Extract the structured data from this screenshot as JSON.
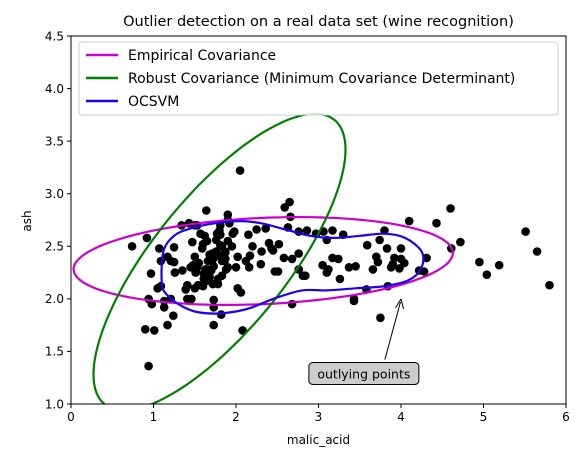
{
  "chart_data": {
    "type": "scatter",
    "title": "Outlier detection on a real data set (wine recognition)",
    "xlabel": "malic_acid",
    "ylabel": "ash",
    "xlim": [
      0,
      6
    ],
    "ylim": [
      1.0,
      4.5
    ],
    "x_ticks": [
      "0",
      "1",
      "2",
      "3",
      "4",
      "5",
      "6"
    ],
    "y_ticks": [
      "1.0",
      "1.5",
      "2.0",
      "2.5",
      "3.0",
      "3.5",
      "4.0",
      "4.5"
    ],
    "grid": false,
    "legend_position": "top",
    "series": [
      {
        "name": "Empirical Covariance",
        "kind": "contour",
        "color": "#cc00cc"
      },
      {
        "name": "Robust Covariance (Minimum Covariance Determinant)",
        "kind": "contour",
        "color": "#008000"
      },
      {
        "name": "OCSVM",
        "kind": "contour",
        "color": "#2200ee"
      }
    ],
    "contours": {
      "empirical": {
        "center": [
          2.33,
          2.36
        ],
        "semi_axes": [
          2.3,
          0.41
        ],
        "angle_deg": 2
      },
      "robust": {
        "center": [
          1.8,
          2.35
        ],
        "semi_axes": [
          1.95,
          0.72
        ],
        "angle_deg": 42
      },
      "ocsvm": [
        [
          1.1,
          2.15
        ],
        [
          1.12,
          2.45
        ],
        [
          1.25,
          2.6
        ],
        [
          1.45,
          2.67
        ],
        [
          1.75,
          2.72
        ],
        [
          2.05,
          2.74
        ],
        [
          2.3,
          2.72
        ],
        [
          2.6,
          2.66
        ],
        [
          2.9,
          2.6
        ],
        [
          3.2,
          2.58
        ],
        [
          3.5,
          2.6
        ],
        [
          3.8,
          2.62
        ],
        [
          4.05,
          2.58
        ],
        [
          4.25,
          2.45
        ],
        [
          4.25,
          2.3
        ],
        [
          4.1,
          2.18
        ],
        [
          3.8,
          2.12
        ],
        [
          3.45,
          2.1
        ],
        [
          3.1,
          2.08
        ],
        [
          2.8,
          2.08
        ],
        [
          2.45,
          2.0
        ],
        [
          2.2,
          1.92
        ],
        [
          2.0,
          1.88
        ],
        [
          1.75,
          1.86
        ],
        [
          1.5,
          1.88
        ],
        [
          1.3,
          1.95
        ],
        [
          1.15,
          2.05
        ]
      ]
    },
    "points": [
      [
        1.71,
        2.43
      ],
      [
        1.78,
        2.14
      ],
      [
        2.36,
        2.67
      ],
      [
        1.95,
        2.5
      ],
      [
        2.59,
        2.87
      ],
      [
        1.76,
        2.45
      ],
      [
        1.87,
        2.45
      ],
      [
        2.15,
        2.61
      ],
      [
        1.64,
        2.17
      ],
      [
        1.35,
        2.27
      ],
      [
        2.16,
        2.3
      ],
      [
        1.48,
        2.32
      ],
      [
        1.73,
        2.41
      ],
      [
        1.73,
        2.39
      ],
      [
        1.87,
        2.38
      ],
      [
        1.81,
        2.7
      ],
      [
        1.92,
        2.72
      ],
      [
        1.57,
        2.62
      ],
      [
        1.59,
        2.48
      ],
      [
        3.1,
        2.56
      ],
      [
        1.63,
        2.28
      ],
      [
        3.8,
        2.65
      ],
      [
        1.86,
        2.36
      ],
      [
        1.6,
        2.52
      ],
      [
        1.81,
        2.61
      ],
      [
        2.05,
        3.22
      ],
      [
        1.77,
        2.62
      ],
      [
        1.72,
        2.14
      ],
      [
        1.9,
        2.8
      ],
      [
        1.68,
        2.21
      ],
      [
        1.5,
        2.7
      ],
      [
        1.66,
        2.36
      ],
      [
        1.83,
        2.36
      ],
      [
        1.53,
        2.7
      ],
      [
        1.8,
        2.65
      ],
      [
        1.81,
        2.41
      ],
      [
        1.64,
        2.84
      ],
      [
        1.65,
        2.55
      ],
      [
        1.5,
        2.1
      ],
      [
        3.59,
        2.51
      ],
      [
        1.83,
        2.5
      ],
      [
        1.5,
        2.4
      ],
      [
        3.12,
        2.28
      ],
      [
        1.76,
        2.56
      ],
      [
        1.73,
        2.31
      ],
      [
        1.62,
        2.6
      ],
      [
        1.68,
        2.42
      ],
      [
        1.64,
        2.2
      ],
      [
        1.73,
        1.99
      ],
      [
        1.71,
        2.36
      ],
      [
        1.87,
        2.44
      ],
      [
        1.25,
        2.35
      ],
      [
        1.05,
        2.1
      ],
      [
        1.9,
        2.55
      ],
      [
        1.47,
        2.54
      ],
      [
        1.98,
        2.64
      ],
      [
        1.54,
        2.13
      ],
      [
        0.94,
        1.36
      ],
      [
        1.63,
        2.26
      ],
      [
        2.0,
        2.3
      ],
      [
        1.45,
        2.3
      ],
      [
        1.6,
        2.12
      ],
      [
        2.06,
        2.06
      ],
      [
        2.02,
        2.1
      ],
      [
        1.09,
        2.12
      ],
      [
        1.25,
        2.49
      ],
      [
        1.13,
        1.92
      ],
      [
        1.53,
        2.3
      ],
      [
        1.82,
        1.85
      ],
      [
        1.26,
        2.25
      ],
      [
        1.41,
        2.0
      ],
      [
        1.51,
        2.26
      ],
      [
        1.73,
        1.92
      ],
      [
        3.26,
        2.19
      ],
      [
        2.68,
        2.38
      ],
      [
        1.17,
        2.4
      ],
      [
        1.65,
        2.28
      ],
      [
        0.9,
        1.71
      ],
      [
        1.43,
        2.72
      ],
      [
        1.39,
        2.09
      ],
      [
        1.21,
        2.0
      ],
      [
        1.01,
        1.7
      ],
      [
        1.17,
        1.75
      ],
      [
        0.94,
        2.0
      ],
      [
        1.09,
        2.36
      ],
      [
        1.13,
        1.98
      ],
      [
        0.97,
        2.24
      ],
      [
        1.07,
        2.48
      ],
      [
        1.24,
        1.84
      ],
      [
        0.98,
        1.95
      ],
      [
        1.61,
        2.24
      ],
      [
        1.67,
        2.24
      ],
      [
        1.73,
        1.75
      ],
      [
        1.61,
        2.19
      ],
      [
        1.21,
        2.36
      ],
      [
        1.34,
        2.7
      ],
      [
        2.08,
        1.7
      ],
      [
        0.74,
        2.5
      ],
      [
        0.92,
        2.58
      ],
      [
        1.51,
        2.25
      ],
      [
        2.51,
        2.26
      ],
      [
        1.88,
        2.28
      ],
      [
        1.9,
        2.3
      ],
      [
        1.66,
        2.18
      ],
      [
        2.81,
        2.22
      ],
      [
        1.78,
        2.19
      ],
      [
        4.0,
        2.48
      ],
      [
        2.76,
        2.43
      ],
      [
        1.83,
        2.22
      ],
      [
        2.4,
        2.53
      ],
      [
        1.9,
        2.75
      ],
      [
        2.12,
        2.36
      ],
      [
        3.17,
        2.39
      ],
      [
        3.43,
        2.0
      ],
      [
        1.41,
        2.13
      ],
      [
        3.37,
        2.3
      ],
      [
        3.05,
        2.32
      ],
      [
        3.92,
        2.39
      ],
      [
        3.66,
        2.28
      ],
      [
        2.86,
        2.65
      ],
      [
        3.74,
        2.56
      ],
      [
        3.3,
        2.61
      ],
      [
        1.81,
        2.51
      ],
      [
        2.76,
        2.64
      ],
      [
        4.1,
        2.74
      ],
      [
        3.7,
        2.4
      ],
      [
        3.45,
        2.31
      ],
      [
        4.0,
        2.38
      ],
      [
        4.6,
        2.86
      ],
      [
        4.43,
        2.72
      ],
      [
        4.95,
        2.35
      ],
      [
        5.51,
        2.64
      ],
      [
        5.65,
        2.45
      ],
      [
        5.8,
        2.13
      ],
      [
        3.83,
        2.48
      ],
      [
        4.31,
        2.39
      ],
      [
        4.04,
        2.34
      ],
      [
        3.98,
        2.29
      ],
      [
        3.43,
        1.98
      ],
      [
        3.84,
        2.12
      ],
      [
        4.61,
        2.48
      ],
      [
        3.24,
        2.38
      ],
      [
        3.06,
        2.64
      ],
      [
        2.66,
        2.78
      ],
      [
        3.17,
        2.65
      ],
      [
        4.28,
        2.26
      ],
      [
        2.76,
        2.28
      ],
      [
        3.9,
        2.33
      ],
      [
        3.58,
        2.09
      ],
      [
        4.72,
        2.54
      ],
      [
        3.1,
        2.25
      ],
      [
        5.04,
        2.23
      ],
      [
        5.19,
        2.32
      ],
      [
        2.43,
        2.48
      ],
      [
        2.17,
        2.41
      ],
      [
        2.58,
        2.39
      ],
      [
        2.45,
        2.46
      ],
      [
        2.02,
        2.4
      ],
      [
        2.2,
        2.5
      ],
      [
        1.7,
        2.27
      ],
      [
        2.52,
        2.52
      ],
      [
        2.63,
        2.68
      ],
      [
        2.65,
        2.92
      ],
      [
        2.47,
        2.26
      ],
      [
        2.3,
        2.33
      ],
      [
        2.68,
        1.95
      ],
      [
        3.75,
        1.82
      ],
      [
        2.25,
        2.66
      ],
      [
        3.88,
        2.3
      ],
      [
        4.22,
        2.27
      ],
      [
        2.84,
        2.22
      ],
      [
        1.96,
        2.62
      ],
      [
        2.97,
        2.62
      ],
      [
        3.72,
        2.35
      ],
      [
        1.46,
        2.0
      ],
      [
        2.31,
        2.45
      ],
      [
        1.55,
        2.34
      ]
    ],
    "annotation": {
      "text": "outlying points",
      "target": [
        4.0,
        2.0
      ],
      "text_pos": [
        3.55,
        1.28
      ]
    }
  }
}
